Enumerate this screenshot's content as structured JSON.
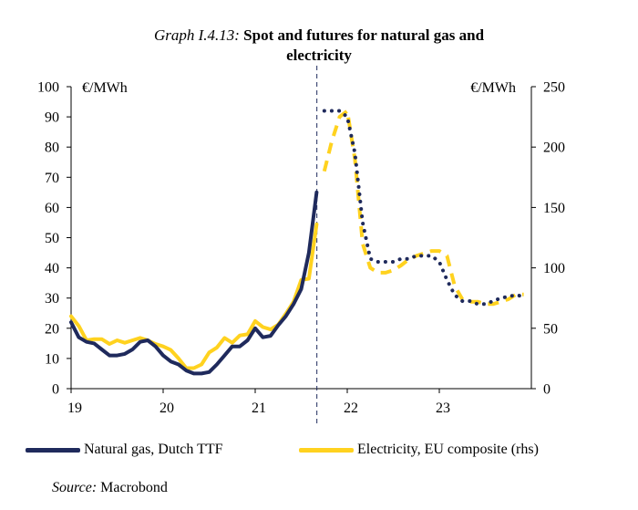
{
  "title": {
    "prefix": "Graph I.4.13:",
    "line1": "Spot and futures for natural gas and",
    "line2": "electricity"
  },
  "source": {
    "label": "Source:",
    "value": "Macrobond"
  },
  "chart_data": {
    "type": "line",
    "left_axis": {
      "unit": "€/MWh",
      "ylim": [
        0,
        100
      ],
      "ticks": [
        "0",
        "10",
        "20",
        "30",
        "40",
        "50",
        "60",
        "70",
        "80",
        "90",
        "100"
      ]
    },
    "right_axis": {
      "unit": "€/MWh",
      "ylim": [
        0,
        250
      ],
      "ticks": [
        "0",
        "50",
        "100",
        "150",
        "200",
        "250"
      ]
    },
    "x_axis": {
      "xlim": [
        19,
        24
      ],
      "ticks": [
        {
          "value": 19,
          "label": "19"
        },
        {
          "value": 20,
          "label": "20"
        },
        {
          "value": 21,
          "label": "21"
        },
        {
          "value": 22,
          "label": "22"
        },
        {
          "value": 23,
          "label": "23"
        }
      ]
    },
    "divider_x": 21.67,
    "series": [
      {
        "name": "Natural gas, Dutch TTF",
        "axis": "left",
        "color": "#1f2a5c",
        "spot": {
          "x": [
            19.0,
            19.083,
            19.167,
            19.25,
            19.333,
            19.417,
            19.5,
            19.583,
            19.667,
            19.75,
            19.833,
            19.917,
            20.0,
            20.083,
            20.167,
            20.25,
            20.333,
            20.417,
            20.5,
            20.583,
            20.667,
            20.75,
            20.833,
            20.917,
            21.0,
            21.083,
            21.167,
            21.25,
            21.333,
            21.417,
            21.5,
            21.583,
            21.667
          ],
          "y": [
            22,
            17,
            15.5,
            15,
            13,
            11,
            11,
            11.5,
            13,
            15.5,
            16,
            14,
            11,
            9,
            8,
            6,
            5,
            5,
            5.5,
            8,
            11,
            14,
            14,
            16,
            20,
            17,
            17.5,
            21,
            24,
            28,
            33,
            45,
            65
          ]
        },
        "futures": {
          "x": [
            21.75,
            21.833,
            21.917,
            22.0,
            22.083,
            22.167,
            22.25,
            22.333,
            22.417,
            22.5,
            22.583,
            22.667,
            22.75,
            22.833,
            22.917,
            23.0,
            23.083,
            23.167,
            23.25,
            23.333,
            23.417,
            23.5,
            23.583,
            23.667,
            23.75,
            23.833,
            23.917
          ],
          "y": [
            92,
            92,
            92,
            90,
            78,
            55,
            43,
            42,
            42,
            42,
            43,
            43,
            44,
            44,
            44,
            42,
            36,
            31,
            29,
            29,
            28,
            28,
            29,
            30,
            30.5,
            31,
            30.5
          ]
        }
      },
      {
        "name": "Electricity, EU composite (rhs)",
        "axis": "right",
        "color": "#ffd21f",
        "spot": {
          "x": [
            19.0,
            19.083,
            19.167,
            19.25,
            19.333,
            19.417,
            19.5,
            19.583,
            19.667,
            19.75,
            19.833,
            19.917,
            20.0,
            20.083,
            20.167,
            20.25,
            20.333,
            20.417,
            20.5,
            20.583,
            20.667,
            20.75,
            20.833,
            20.917,
            21.0,
            21.083,
            21.167,
            21.25,
            21.333,
            21.417,
            21.5,
            21.583,
            21.667
          ],
          "y": [
            60,
            52,
            40,
            41,
            41,
            37,
            40,
            38,
            40,
            42,
            40,
            37,
            35,
            32,
            25,
            17,
            17,
            20,
            30,
            34,
            42,
            38,
            44,
            45,
            56,
            51,
            49,
            53,
            62,
            72,
            90,
            91,
            136
          ]
        },
        "futures": {
          "x": [
            21.75,
            21.833,
            21.917,
            22.0,
            22.083,
            22.167,
            22.25,
            22.333,
            22.417,
            22.5,
            22.583,
            22.667,
            22.75,
            22.833,
            22.917,
            23.0,
            23.083,
            23.167,
            23.25,
            23.333,
            23.417,
            23.5,
            23.583,
            23.667,
            23.75,
            23.833,
            23.917
          ],
          "y": [
            180,
            205,
            225,
            230,
            190,
            120,
            100,
            96,
            96,
            98,
            102,
            107,
            110,
            112,
            114,
            114,
            110,
            85,
            74,
            72,
            72,
            70,
            70,
            72,
            74,
            78,
            78
          ]
        }
      }
    ],
    "legend": {
      "placement": "bottom"
    }
  }
}
